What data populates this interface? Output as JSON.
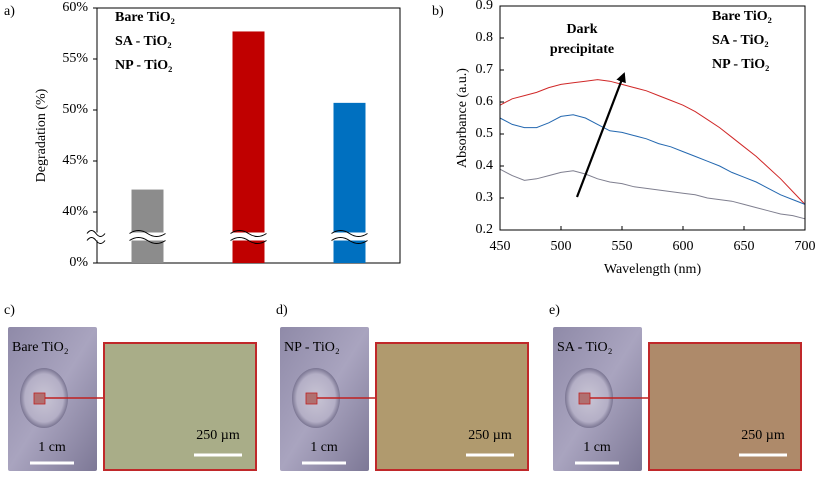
{
  "chart_data": [
    {
      "type": "bar",
      "panel_label": "a)",
      "ylabel": "Degradation (%)",
      "ylim": [
        0,
        60
      ],
      "ybreak": [
        2.5,
        37.5
      ],
      "yticks": [
        {
          "value": 0,
          "label": "0%"
        },
        {
          "value": 40,
          "label": "40%"
        },
        {
          "value": 45,
          "label": "45%"
        },
        {
          "value": 50,
          "label": "50%"
        },
        {
          "value": 55,
          "label": "55%"
        },
        {
          "value": 60,
          "label": "60%"
        }
      ],
      "series": [
        {
          "name": "Bare TiO₂",
          "color": "#8c8c8c",
          "values": [
            42.2
          ]
        },
        {
          "name": "SA - TiO₂",
          "color": "#c00000",
          "values": [
            57.7
          ]
        },
        {
          "name": "NP - TiO₂",
          "color": "#0070c0",
          "values": [
            50.7
          ]
        }
      ]
    },
    {
      "type": "line",
      "panel_label": "b)",
      "xlabel": "Wavelength (nm)",
      "ylabel": "Absorbance (a.u.)",
      "annotation": "Dark precipitate",
      "x": [
        450,
        460,
        470,
        480,
        490,
        500,
        510,
        520,
        530,
        540,
        550,
        560,
        570,
        580,
        590,
        600,
        610,
        620,
        630,
        640,
        650,
        660,
        670,
        680,
        690,
        700
      ],
      "xlim": [
        450,
        700
      ],
      "xticks": [
        450,
        500,
        550,
        600,
        650,
        700
      ],
      "ylim": [
        0.2,
        0.9
      ],
      "yticks": [
        0.2,
        0.3,
        0.4,
        0.5,
        0.6,
        0.7,
        0.8,
        0.9
      ],
      "series": [
        {
          "name": "Bare TiO₂",
          "color": "#7f7f8f",
          "values": [
            0.39,
            0.37,
            0.355,
            0.36,
            0.37,
            0.38,
            0.385,
            0.375,
            0.36,
            0.35,
            0.345,
            0.335,
            0.33,
            0.325,
            0.32,
            0.315,
            0.31,
            0.3,
            0.295,
            0.29,
            0.28,
            0.27,
            0.26,
            0.25,
            0.245,
            0.235
          ]
        },
        {
          "name": "SA - TiO₂",
          "color": "#d02828",
          "values": [
            0.59,
            0.61,
            0.62,
            0.63,
            0.645,
            0.655,
            0.66,
            0.665,
            0.67,
            0.665,
            0.655,
            0.645,
            0.635,
            0.62,
            0.605,
            0.59,
            0.57,
            0.545,
            0.52,
            0.49,
            0.46,
            0.43,
            0.395,
            0.36,
            0.32,
            0.28
          ]
        },
        {
          "name": "NP - TiO₂",
          "color": "#2468b0",
          "values": [
            0.55,
            0.53,
            0.52,
            0.52,
            0.535,
            0.555,
            0.56,
            0.55,
            0.53,
            0.51,
            0.505,
            0.495,
            0.485,
            0.47,
            0.46,
            0.445,
            0.43,
            0.415,
            0.4,
            0.38,
            0.365,
            0.35,
            0.33,
            0.31,
            0.295,
            0.28
          ]
        }
      ]
    }
  ],
  "photos": [
    {
      "panel_label": "c)",
      "sample": "Bare TiO₂",
      "sample_scale": "1 cm",
      "inset_scale": "250 µm"
    },
    {
      "panel_label": "d)",
      "sample": "NP - TiO₂",
      "sample_scale": "1 cm",
      "inset_scale": "250 µm"
    },
    {
      "panel_label": "e)",
      "sample": "SA - TiO₂",
      "sample_scale": "1 cm",
      "inset_scale": "250 µm"
    }
  ]
}
